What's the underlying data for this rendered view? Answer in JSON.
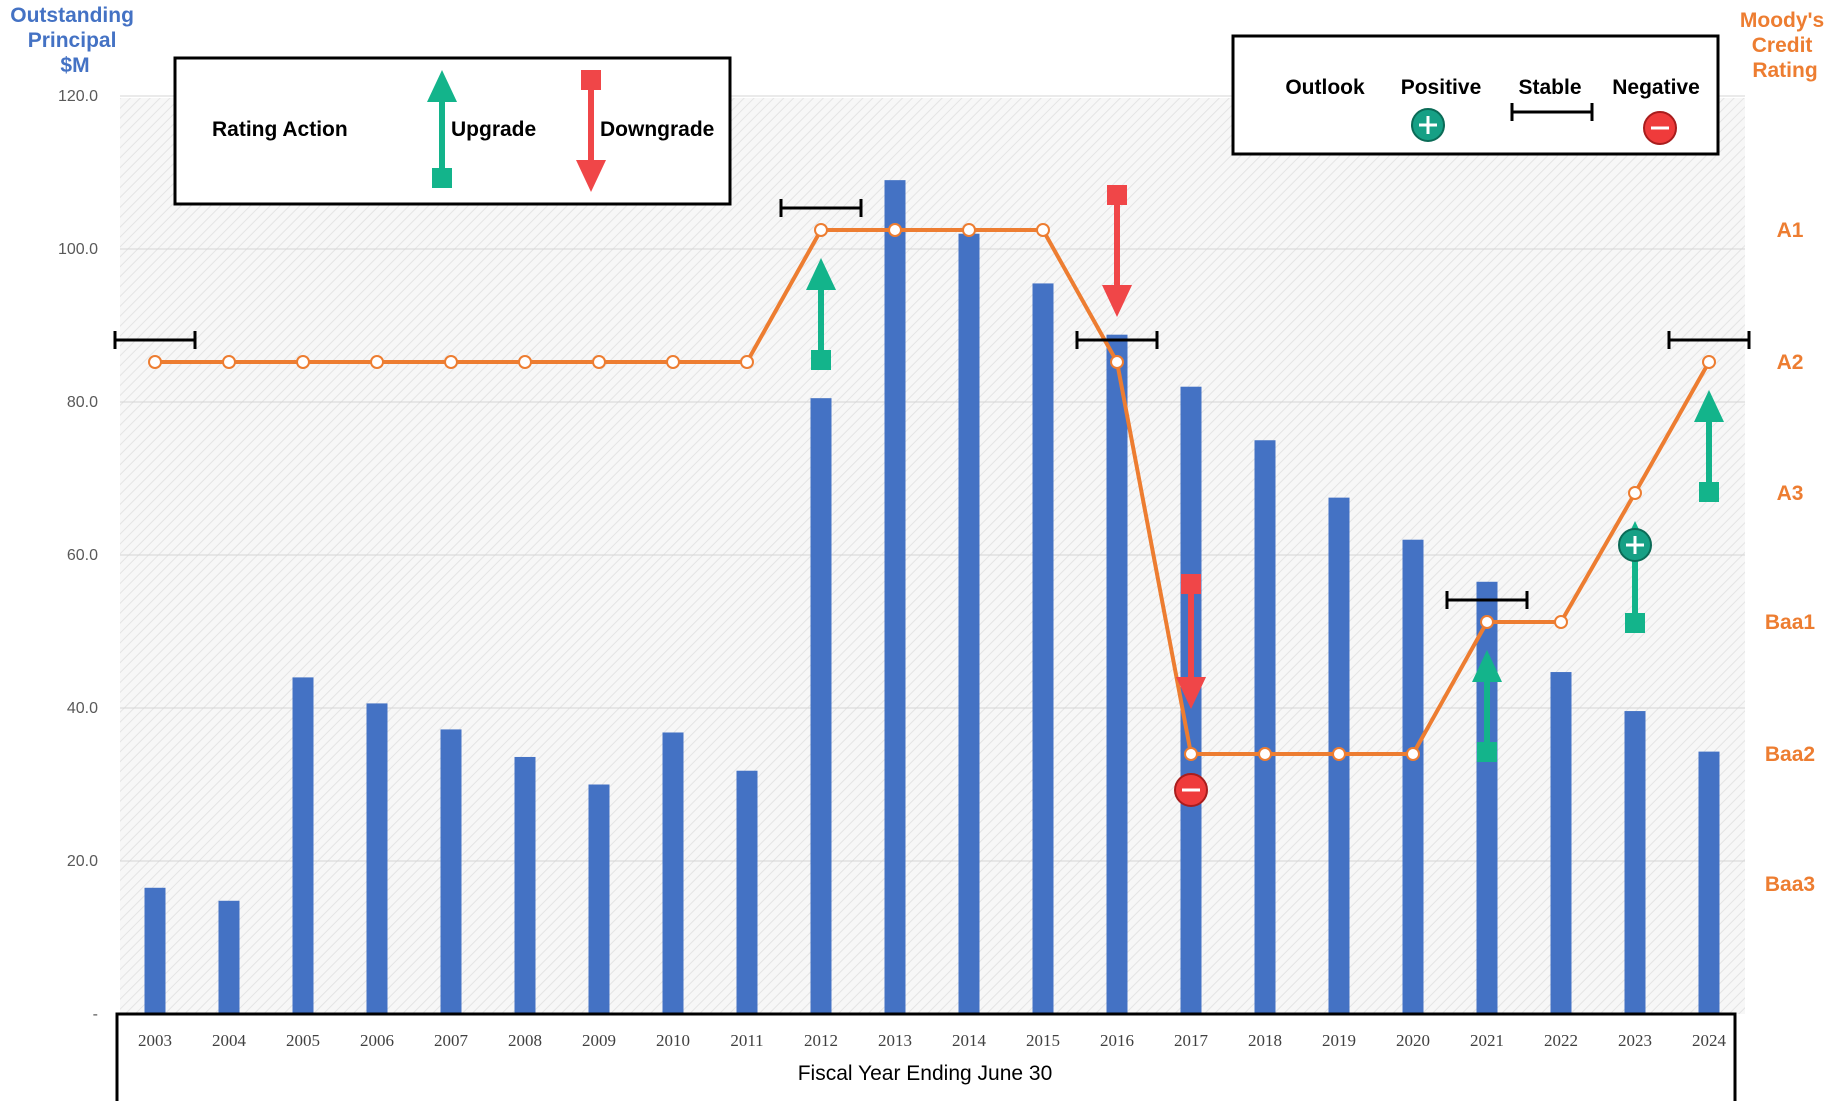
{
  "chart_data": {
    "type": "bar",
    "x": [
      2003,
      2004,
      2005,
      2006,
      2007,
      2008,
      2009,
      2010,
      2011,
      2012,
      2013,
      2014,
      2015,
      2016,
      2017,
      2018,
      2019,
      2020,
      2021,
      2022,
      2023,
      2024
    ],
    "categories": [
      "2003",
      "2004",
      "2005",
      "2006",
      "2007",
      "2008",
      "2009",
      "2010",
      "2011",
      "2012",
      "2013",
      "2014",
      "2015",
      "2016",
      "2017",
      "2018",
      "2019",
      "2020",
      "2021",
      "2022",
      "2023",
      "2024"
    ],
    "series": [
      {
        "type": "bar",
        "axis": "left",
        "color": "#4472C4",
        "values": [
          16.5,
          14.8,
          44.0,
          40.6,
          37.2,
          33.6,
          30.0,
          36.8,
          31.8,
          80.5,
          109.0,
          102.0,
          95.5,
          88.8,
          82.0,
          75.0,
          67.5,
          62.0,
          56.5,
          44.7,
          39.6,
          34.3
        ]
      },
      {
        "type": "line",
        "axis": "right",
        "color": "#ED7D31",
        "values": [
          "A2",
          "A2",
          "A2",
          "A2",
          "A2",
          "A2",
          "A2",
          "A2",
          "A2",
          "A1",
          "A1",
          "A1",
          "A1",
          "A2",
          "Baa2",
          "Baa2",
          "Baa2",
          "Baa2",
          "Baa1",
          "Baa1",
          "A3",
          "A2"
        ]
      }
    ],
    "ylabel": [
      "Outstanding",
      "Principal",
      "$M"
    ],
    "ylim": [
      0,
      120
    ],
    "yticks": [
      "-",
      "20.0",
      "40.0",
      "60.0",
      "80.0",
      "100.0",
      "120.0"
    ],
    "y2label": [
      "Moody's",
      "Credit",
      "Rating"
    ],
    "y2_ratings": [
      "Baa3",
      "Baa2",
      "Baa1",
      "A3",
      "A2",
      "A1"
    ],
    "xlabel": "Fiscal Year Ending June 30",
    "grid": true,
    "upgrades": [
      2012,
      2021,
      2023,
      2024
    ],
    "downgrades": [
      2016,
      2017
    ],
    "outlook_stable": [
      2003,
      2012,
      2016,
      2021,
      2024
    ],
    "outlook_positive": [
      2023
    ],
    "outlook_negative": [
      2017
    ],
    "legend_rating_action": {
      "title": "Rating Action",
      "upgrade": "Upgrade",
      "downgrade": "Downgrade",
      "position": "top-left"
    },
    "legend_outlook": {
      "title": "Outlook",
      "positive": "Positive",
      "stable": "Stable",
      "negative": "Negative",
      "position": "top-right"
    },
    "colors": {
      "bar": "#4472C4",
      "rating_line": "#ED7D31",
      "upgrade": "#13B48B",
      "downgrade": "#F04648"
    }
  }
}
